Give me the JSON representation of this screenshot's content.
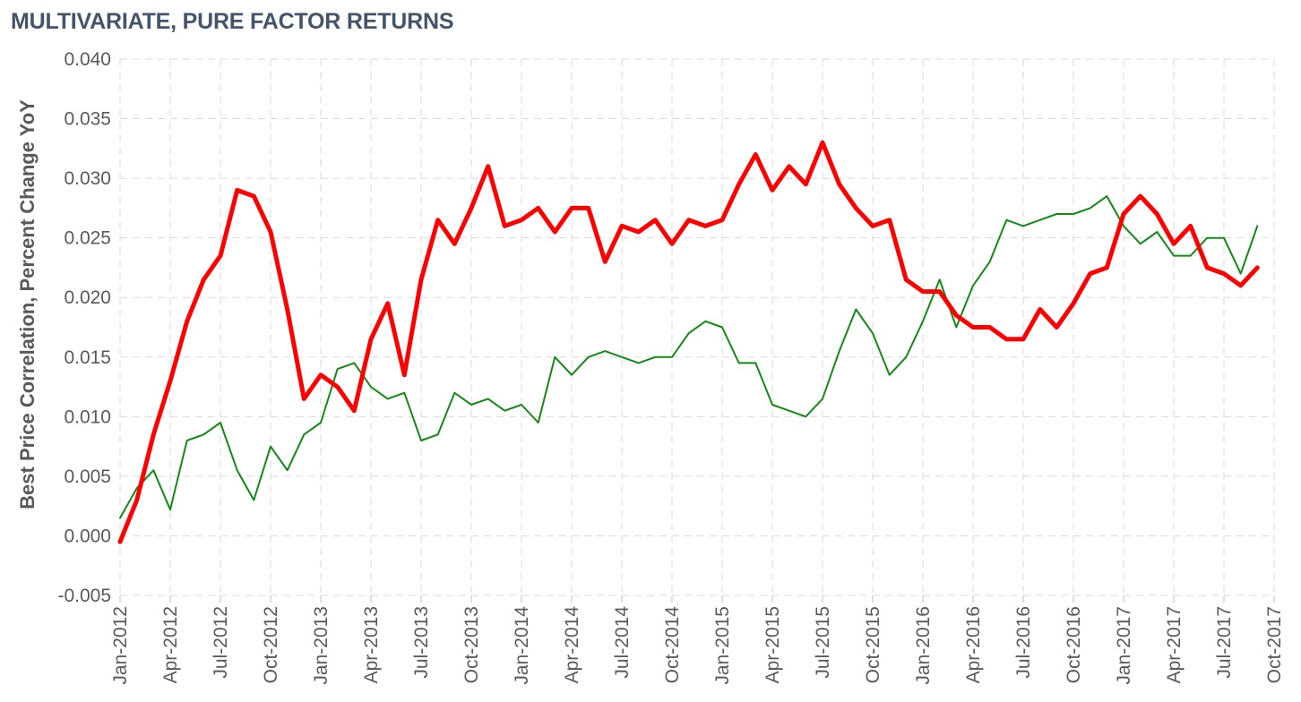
{
  "chart_data": {
    "type": "line",
    "title": "MULTIVARIATE, PURE FACTOR RETURNS",
    "ylabel": "Best Price Correlation, Percent Change YoY",
    "xlabel": "",
    "ylim": [
      -0.005,
      0.04
    ],
    "y_ticks": [
      "-0.005",
      "0.000",
      "0.005",
      "0.010",
      "0.015",
      "0.020",
      "0.025",
      "0.030",
      "0.035",
      "0.040"
    ],
    "x_range": [
      "2012-01",
      "2017-10"
    ],
    "x_ticks": [
      "Jan-2012",
      "Apr-2012",
      "Jul-2012",
      "Oct-2012",
      "Jan-2013",
      "Apr-2013",
      "Jul-2013",
      "Oct-2013",
      "Jan-2014",
      "Apr-2014",
      "Jul-2014",
      "Oct-2014",
      "Jan-2015",
      "Apr-2015",
      "Jul-2015",
      "Oct-2015",
      "Jan-2016",
      "Apr-2016",
      "Jul-2016",
      "Oct-2016",
      "Jan-2017",
      "Apr-2017",
      "Jul-2017",
      "Oct-2017"
    ],
    "grid": true,
    "legend": "none",
    "series": [
      {
        "color": "#ff0000",
        "style": "thick",
        "x": [
          "2012-01",
          "2012-02",
          "2012-03",
          "2012-04",
          "2012-05",
          "2012-06",
          "2012-07",
          "2012-08",
          "2012-09",
          "2012-10",
          "2012-11",
          "2012-12",
          "2013-01",
          "2013-02",
          "2013-03",
          "2013-04",
          "2013-05",
          "2013-06",
          "2013-07",
          "2013-08",
          "2013-09",
          "2013-10",
          "2013-11",
          "2013-12",
          "2014-01",
          "2014-02",
          "2014-03",
          "2014-04",
          "2014-05",
          "2014-06",
          "2014-07",
          "2014-08",
          "2014-09",
          "2014-10",
          "2014-11",
          "2014-12",
          "2015-01",
          "2015-02",
          "2015-03",
          "2015-04",
          "2015-05",
          "2015-06",
          "2015-07",
          "2015-08",
          "2015-09",
          "2015-10",
          "2015-11",
          "2015-12",
          "2016-01",
          "2016-02",
          "2016-03",
          "2016-04",
          "2016-05",
          "2016-06",
          "2016-07",
          "2016-08",
          "2016-09",
          "2016-10",
          "2016-11",
          "2016-12",
          "2017-01",
          "2017-02",
          "2017-03",
          "2017-04",
          "2017-05",
          "2017-06",
          "2017-07",
          "2017-08",
          "2017-09"
        ],
        "values": [
          -0.0005,
          0.003,
          0.0085,
          0.013,
          0.018,
          0.0215,
          0.0235,
          0.029,
          0.0285,
          0.0255,
          0.019,
          0.0115,
          0.0135,
          0.0125,
          0.0105,
          0.0165,
          0.0195,
          0.0135,
          0.0215,
          0.0265,
          0.0245,
          0.0275,
          0.031,
          0.026,
          0.0265,
          0.0275,
          0.0255,
          0.0275,
          0.0275,
          0.023,
          0.026,
          0.0255,
          0.0265,
          0.0245,
          0.0265,
          0.026,
          0.0265,
          0.0295,
          0.032,
          0.029,
          0.031,
          0.0295,
          0.033,
          0.0295,
          0.0275,
          0.026,
          0.0265,
          0.0215,
          0.0205,
          0.0205,
          0.0185,
          0.0175,
          0.0175,
          0.0165,
          0.0165,
          0.019,
          0.0175,
          0.0195,
          0.022,
          0.0225,
          0.027,
          0.0285,
          0.027,
          0.0245,
          0.026,
          0.0225,
          0.022,
          0.021,
          0.0225
        ]
      },
      {
        "color": "#138a13",
        "style": "thin",
        "x": [
          "2012-01",
          "2012-02",
          "2012-03",
          "2012-04",
          "2012-05",
          "2012-06",
          "2012-07",
          "2012-08",
          "2012-09",
          "2012-10",
          "2012-11",
          "2012-12",
          "2013-01",
          "2013-02",
          "2013-03",
          "2013-04",
          "2013-05",
          "2013-06",
          "2013-07",
          "2013-08",
          "2013-09",
          "2013-10",
          "2013-11",
          "2013-12",
          "2014-01",
          "2014-02",
          "2014-03",
          "2014-04",
          "2014-05",
          "2014-06",
          "2014-07",
          "2014-08",
          "2014-09",
          "2014-10",
          "2014-11",
          "2014-12",
          "2015-01",
          "2015-02",
          "2015-03",
          "2015-04",
          "2015-05",
          "2015-06",
          "2015-07",
          "2015-08",
          "2015-09",
          "2015-10",
          "2015-11",
          "2015-12",
          "2016-01",
          "2016-02",
          "2016-03",
          "2016-04",
          "2016-05",
          "2016-06",
          "2016-07",
          "2016-08",
          "2016-09",
          "2016-10",
          "2016-11",
          "2016-12",
          "2017-01",
          "2017-02",
          "2017-03",
          "2017-04",
          "2017-05",
          "2017-06",
          "2017-07",
          "2017-08",
          "2017-09"
        ],
        "values": [
          0.0015,
          0.004,
          0.0055,
          0.0022,
          0.008,
          0.0085,
          0.0095,
          0.0055,
          0.003,
          0.0075,
          0.0055,
          0.0085,
          0.0095,
          0.014,
          0.0145,
          0.0125,
          0.0115,
          0.012,
          0.008,
          0.0085,
          0.012,
          0.011,
          0.0115,
          0.0105,
          0.011,
          0.0095,
          0.015,
          0.0135,
          0.015,
          0.0155,
          0.015,
          0.0145,
          0.015,
          0.015,
          0.017,
          0.018,
          0.0175,
          0.0145,
          0.0145,
          0.011,
          0.0105,
          0.01,
          0.0115,
          0.0155,
          0.019,
          0.017,
          0.0135,
          0.015,
          0.018,
          0.0215,
          0.0175,
          0.021,
          0.023,
          0.0265,
          0.026,
          0.0265,
          0.027,
          0.027,
          0.0275,
          0.0285,
          0.026,
          0.0245,
          0.0255,
          0.0235,
          0.0235,
          0.025,
          0.025,
          0.022,
          0.026
        ]
      }
    ]
  }
}
